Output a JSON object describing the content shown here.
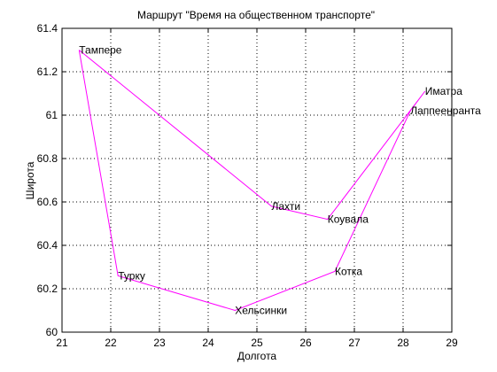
{
  "chart_data": {
    "type": "line",
    "title": "Маршрут \"Время на общественном транспорте\"",
    "xlabel": "Долгота",
    "ylabel": "Широта",
    "xlim": [
      21,
      29
    ],
    "ylim": [
      60,
      61.4
    ],
    "xticks": [
      21,
      22,
      23,
      24,
      25,
      26,
      27,
      28,
      29
    ],
    "yticks": [
      60,
      60.2,
      60.4,
      60.6,
      60.8,
      61,
      61.2,
      61.4
    ],
    "xtick_labels": [
      "21",
      "22",
      "23",
      "24",
      "25",
      "26",
      "27",
      "28",
      "29"
    ],
    "ytick_labels": [
      "60",
      "60.2",
      "60.4",
      "60.6",
      "60.8",
      "61",
      "61.2",
      "61.4"
    ],
    "grid": true,
    "line_color": "#ff00ff",
    "points": [
      {
        "label": "Тампере",
        "x": 21.35,
        "y": 61.3
      },
      {
        "label": "Лахти",
        "x": 25.3,
        "y": 60.58
      },
      {
        "label": "Коувала",
        "x": 26.45,
        "y": 60.52
      },
      {
        "label": "Иматра",
        "x": 28.45,
        "y": 61.11
      },
      {
        "label": "Лаппеенранта",
        "x": 28.15,
        "y": 61.02
      },
      {
        "label": "Котка",
        "x": 26.6,
        "y": 60.28
      },
      {
        "label": "Хельсинки",
        "x": 24.55,
        "y": 60.1
      },
      {
        "label": "Турку",
        "x": 22.15,
        "y": 60.26
      },
      {
        "label": "Тампере",
        "x": 21.35,
        "y": 61.3
      }
    ]
  }
}
